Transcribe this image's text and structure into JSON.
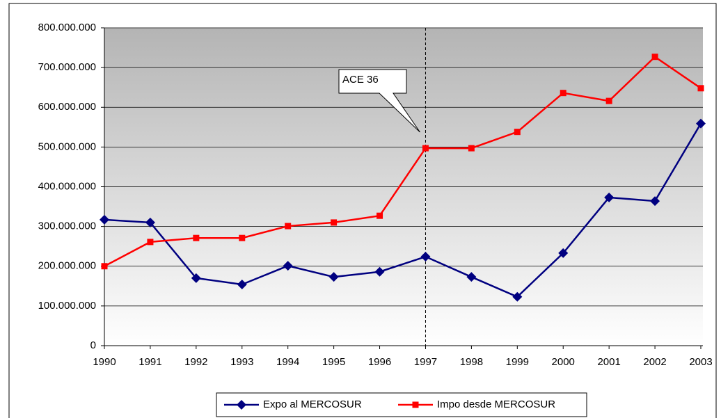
{
  "chart_data": {
    "type": "line",
    "categories": [
      "1990",
      "1991",
      "1992",
      "1993",
      "1994",
      "1995",
      "1996",
      "1997",
      "1998",
      "1999",
      "2000",
      "2001",
      "2002",
      "2003"
    ],
    "series": [
      {
        "name": "Expo al MERCOSUR",
        "color": "#000080",
        "marker": "diamond",
        "values": [
          317000000,
          310000000,
          170000000,
          154000000,
          201000000,
          173000000,
          186000000,
          224000000,
          173000000,
          123000000,
          233000000,
          373000000,
          364000000,
          559000000
        ]
      },
      {
        "name": "Impo desde MERCOSUR",
        "color": "#ff0000",
        "marker": "square",
        "values": [
          200000000,
          261000000,
          271000000,
          271000000,
          301000000,
          310000000,
          327000000,
          497000000,
          497000000,
          538000000,
          636000000,
          616000000,
          727000000,
          648000000
        ]
      }
    ],
    "ylim": [
      0,
      800000000
    ],
    "yticks": [
      0,
      {
        "value": 100000000,
        "label": "100.000.000"
      },
      {
        "value": 200000000,
        "label": "200.000.000"
      },
      {
        "value": 300000000,
        "label": "300.000.000"
      },
      {
        "value": 400000000,
        "label": "400.000.000"
      },
      {
        "value": 500000000,
        "label": "500.000.000"
      },
      {
        "value": 600000000,
        "label": "600.000.000"
      },
      {
        "value": 700000000,
        "label": "700.000.000"
      },
      {
        "value": 800000000,
        "label": "800.000.000"
      }
    ],
    "grid": true,
    "legend": "bottom",
    "annotation": {
      "text": "ACE 36",
      "x": "1997"
    }
  }
}
